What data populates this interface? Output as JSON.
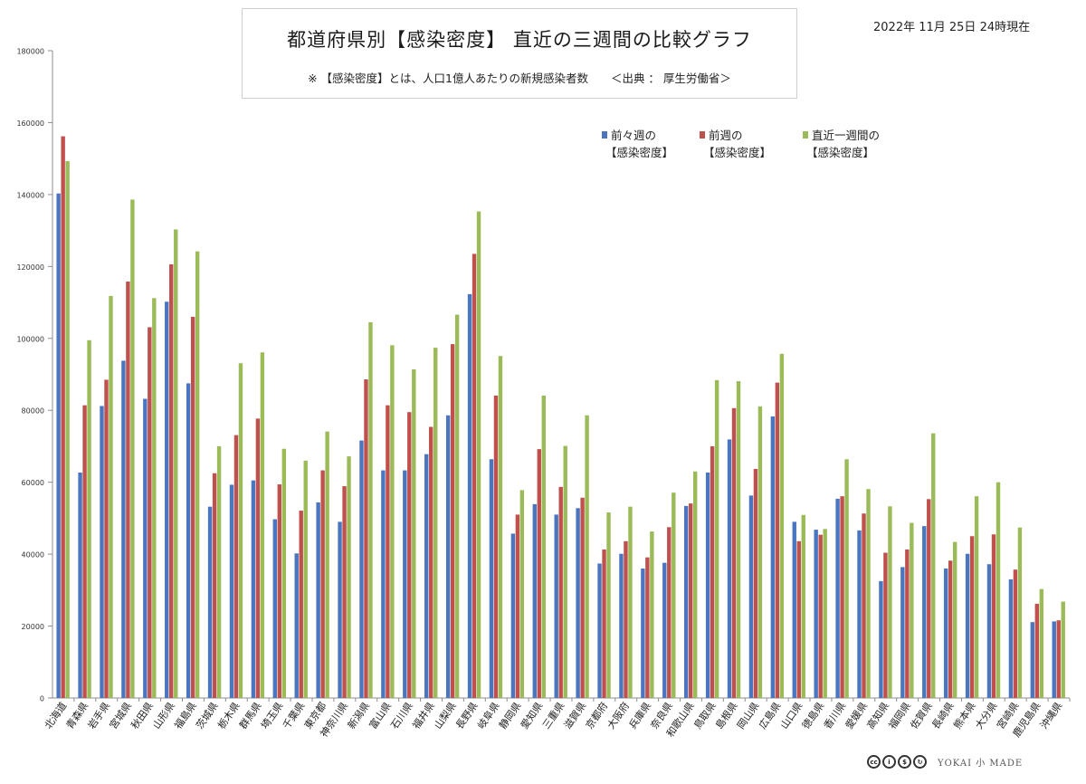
{
  "title": "都道府県別【感染密度】 直近の三週間の比較グラフ",
  "subtitle": "※ 【感染密度】とは、人口1億人あたりの新規感染者数　　＜出典 ： 厚生労働省＞",
  "date_stamp": "2022年 11月 25日 24時現在",
  "license_icons": [
    "cc-icon",
    "by-icon",
    "nc-icon",
    "sa-icon"
  ],
  "author_logo": "YOKAI 小 MADE",
  "chart_data": {
    "type": "bar",
    "ylim": [
      0,
      180000
    ],
    "yticks": [
      0,
      20000,
      40000,
      60000,
      80000,
      100000,
      120000,
      140000,
      160000,
      180000
    ],
    "grid": false,
    "legend_position": "top-right",
    "categories": [
      "北海道",
      "青森県",
      "岩手県",
      "宮城県",
      "秋田県",
      "山形県",
      "福島県",
      "茨城県",
      "栃木県",
      "群馬県",
      "埼玉県",
      "千葉県",
      "東京都",
      "神奈川県",
      "新潟県",
      "富山県",
      "石川県",
      "福井県",
      "山梨県",
      "長野県",
      "岐阜県",
      "静岡県",
      "愛知県",
      "三重県",
      "滋賀県",
      "京都府",
      "大阪府",
      "兵庫県",
      "奈良県",
      "和歌山県",
      "鳥取県",
      "島根県",
      "岡山県",
      "広島県",
      "山口県",
      "徳島県",
      "香川県",
      "愛媛県",
      "高知県",
      "福岡県",
      "佐賀県",
      "長崎県",
      "熊本県",
      "大分県",
      "宮崎県",
      "鹿児島県",
      "沖縄県"
    ],
    "series": [
      {
        "name": "前々週の\n【感染密度】",
        "color": "#4a76c0",
        "values": [
          140300,
          62700,
          81200,
          93800,
          83200,
          110200,
          87500,
          53200,
          59300,
          60500,
          49700,
          40200,
          54400,
          49000,
          71600,
          63300,
          63300,
          67800,
          78600,
          112300,
          66400,
          45700,
          53900,
          51000,
          52800,
          37400,
          40100,
          36000,
          37600,
          53400,
          62700,
          71900,
          56300,
          78300,
          49000,
          46800,
          55400,
          46600,
          32500,
          36400,
          47800,
          36000,
          40100,
          37200,
          33000,
          21100,
          21300
        ]
      },
      {
        "name": "前週の\n【感染密度】",
        "color": "#c0504d",
        "values": [
          156200,
          81400,
          88500,
          115800,
          103100,
          120600,
          106000,
          62500,
          73100,
          77700,
          59400,
          52100,
          63300,
          58900,
          88600,
          81400,
          79500,
          75400,
          98400,
          123500,
          84100,
          51000,
          69200,
          58700,
          55700,
          41300,
          43600,
          39100,
          47500,
          54100,
          70000,
          80600,
          63700,
          87700,
          43600,
          45400,
          56100,
          51300,
          40400,
          41300,
          55300,
          38200,
          45000,
          45500,
          35700,
          26200,
          21600
        ]
      },
      {
        "name": "直近一週間の\n【感染密度】",
        "color": "#9bbb59",
        "values": [
          149300,
          99500,
          111800,
          138600,
          111200,
          130300,
          124200,
          70000,
          93100,
          96100,
          69300,
          66000,
          74100,
          67200,
          104500,
          98100,
          91400,
          97400,
          106600,
          135300,
          95100,
          57800,
          84100,
          70100,
          78600,
          51600,
          53200,
          46300,
          57100,
          63000,
          88400,
          88100,
          81100,
          95700,
          50900,
          47000,
          66400,
          58100,
          53300,
          48700,
          73600,
          43400,
          56100,
          60000,
          47400,
          30300,
          26800
        ]
      }
    ]
  }
}
